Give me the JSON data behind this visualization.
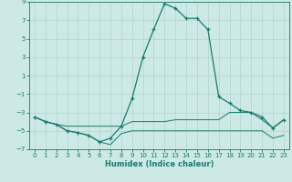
{
  "title": "",
  "xlabel": "Humidex (Indice chaleur)",
  "x": [
    0,
    1,
    2,
    3,
    4,
    5,
    6,
    7,
    8,
    9,
    10,
    11,
    12,
    13,
    14,
    15,
    16,
    17,
    18,
    19,
    20,
    21,
    22,
    23
  ],
  "line_main": [
    -3.5,
    -4.0,
    -4.3,
    -5.0,
    -5.2,
    -5.5,
    -6.2,
    -5.8,
    -4.5,
    -1.5,
    3.0,
    6.0,
    8.8,
    8.3,
    7.2,
    7.2,
    6.0,
    -1.3,
    -2.0,
    -2.8,
    -3.0,
    -3.5,
    -4.7,
    -3.8
  ],
  "line_min": [
    -3.5,
    -4.0,
    -4.3,
    -5.0,
    -5.2,
    -5.5,
    -6.2,
    -6.5,
    -5.3,
    -5.0,
    -5.0,
    -5.0,
    -5.0,
    -5.0,
    -5.0,
    -5.0,
    -5.0,
    -5.0,
    -5.0,
    -5.0,
    -5.0,
    -5.0,
    -5.8,
    -5.5
  ],
  "line_max": [
    -3.5,
    -4.0,
    -4.3,
    -4.5,
    -4.5,
    -4.5,
    -4.5,
    -4.5,
    -4.5,
    -4.0,
    -4.0,
    -4.0,
    -4.0,
    -3.8,
    -3.8,
    -3.8,
    -3.8,
    -3.8,
    -3.0,
    -3.0,
    -3.0,
    -3.8,
    -4.7,
    -3.8
  ],
  "line_color": "#1a7a6e",
  "bg_color": "#cce9e5",
  "grid_color": "#aed4cf",
  "ylim": [
    -7,
    9
  ],
  "yticks": [
    -7,
    -5,
    -3,
    -1,
    1,
    3,
    5,
    7,
    9
  ],
  "xticks": [
    0,
    1,
    2,
    3,
    4,
    5,
    6,
    7,
    8,
    9,
    10,
    11,
    12,
    13,
    14,
    15,
    16,
    17,
    18,
    19,
    20,
    21,
    22,
    23
  ],
  "xlim": [
    -0.5,
    23.5
  ],
  "tick_fontsize": 5.0,
  "xlabel_fontsize": 6.0,
  "xlabel_fontweight": "bold"
}
